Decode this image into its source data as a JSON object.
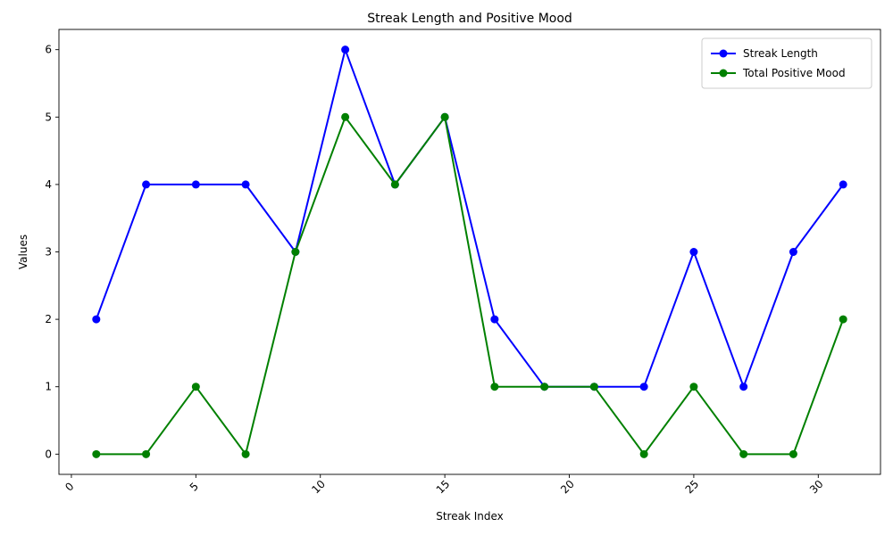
{
  "chart_data": {
    "type": "line",
    "title": "Streak Length and Positive Mood",
    "xlabel": "Streak Index",
    "ylabel": "Values",
    "x": [
      1,
      3,
      5,
      7,
      9,
      11,
      13,
      15,
      17,
      19,
      21,
      23,
      25,
      27,
      29,
      31
    ],
    "xlim": [
      -0.5,
      32.5
    ],
    "ylim": [
      -0.3,
      6.3
    ],
    "xticks": [
      0,
      5,
      10,
      15,
      20,
      25,
      30
    ],
    "yticks": [
      0,
      1,
      2,
      3,
      4,
      5,
      6
    ],
    "grid": false,
    "legend_position": "top-right",
    "series": [
      {
        "name": "Streak Length",
        "color": "#0000ff",
        "marker": "circle",
        "values": [
          2,
          4,
          4,
          4,
          3,
          6,
          4,
          5,
          2,
          1,
          1,
          1,
          3,
          1,
          3,
          4
        ]
      },
      {
        "name": "Total Positive Mood",
        "color": "#008000",
        "marker": "circle",
        "values": [
          0,
          0,
          1,
          0,
          3,
          5,
          4,
          5,
          1,
          1,
          1,
          0,
          1,
          0,
          0,
          2
        ]
      }
    ]
  }
}
